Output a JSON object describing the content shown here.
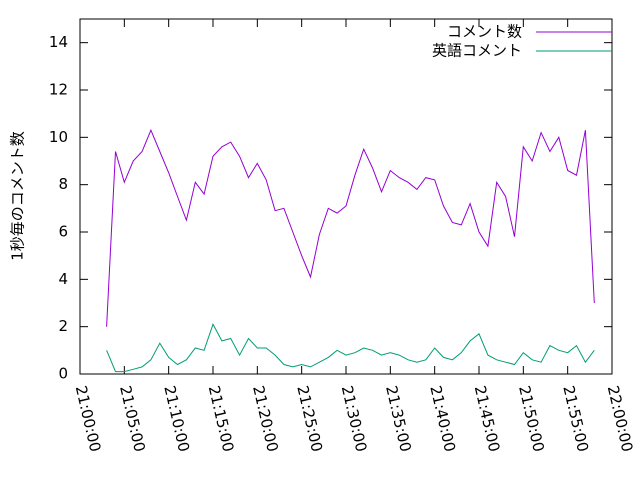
{
  "chart_data": {
    "type": "line",
    "ylabel": "1秒毎のコメント数",
    "x": [
      "21:03:00",
      "21:04:00",
      "21:05:00",
      "21:06:00",
      "21:07:00",
      "21:08:00",
      "21:09:00",
      "21:10:00",
      "21:11:00",
      "21:12:00",
      "21:13:00",
      "21:14:00",
      "21:15:00",
      "21:16:00",
      "21:17:00",
      "21:18:00",
      "21:19:00",
      "21:20:00",
      "21:21:00",
      "21:22:00",
      "21:23:00",
      "21:24:00",
      "21:25:00",
      "21:26:00",
      "21:27:00",
      "21:28:00",
      "21:29:00",
      "21:30:00",
      "21:31:00",
      "21:32:00",
      "21:33:00",
      "21:34:00",
      "21:35:00",
      "21:36:00",
      "21:37:00",
      "21:38:00",
      "21:39:00",
      "21:40:00",
      "21:41:00",
      "21:42:00",
      "21:43:00",
      "21:44:00",
      "21:45:00",
      "21:46:00",
      "21:47:00",
      "21:48:00",
      "21:49:00",
      "21:50:00",
      "21:51:00",
      "21:52:00",
      "21:53:00",
      "21:54:00",
      "21:55:00",
      "21:56:00",
      "21:57:00",
      "21:58:00"
    ],
    "series": [
      {
        "name": "コメント数",
        "color": "#9400d3",
        "values": [
          2.0,
          9.4,
          8.1,
          9.0,
          9.4,
          10.3,
          9.4,
          8.5,
          7.5,
          6.5,
          8.1,
          7.6,
          9.2,
          9.6,
          9.8,
          9.2,
          8.3,
          8.9,
          8.2,
          6.9,
          7.0,
          6.0,
          5.0,
          4.1,
          5.9,
          7.0,
          6.8,
          7.1,
          8.4,
          9.5,
          8.7,
          7.7,
          8.6,
          8.3,
          8.1,
          7.8,
          8.3,
          8.2,
          7.1,
          6.4,
          6.3,
          7.2,
          6.0,
          5.4,
          8.1,
          7.5,
          5.8,
          9.6,
          9.0,
          10.2,
          9.4,
          10.0,
          8.6,
          8.4,
          10.3,
          3.0
        ]
      },
      {
        "name": "英語コメント",
        "color": "#009e73",
        "values": [
          1.0,
          0.1,
          0.1,
          0.2,
          0.3,
          0.6,
          1.3,
          0.7,
          0.4,
          0.6,
          1.1,
          1.0,
          2.1,
          1.4,
          1.5,
          0.8,
          1.5,
          1.1,
          1.1,
          0.8,
          0.4,
          0.3,
          0.4,
          0.3,
          0.5,
          0.7,
          1.0,
          0.8,
          0.9,
          1.1,
          1.0,
          0.8,
          0.9,
          0.8,
          0.6,
          0.5,
          0.6,
          1.1,
          0.7,
          0.6,
          0.9,
          1.4,
          1.7,
          0.8,
          0.6,
          0.5,
          0.4,
          0.9,
          0.6,
          0.5,
          1.2,
          1.0,
          0.9,
          1.2,
          0.5,
          1.0
        ]
      }
    ],
    "xlim": [
      "21:00:00",
      "22:00:00"
    ],
    "xticks": [
      "21:00:00",
      "21:05:00",
      "21:10:00",
      "21:15:00",
      "21:20:00",
      "21:25:00",
      "21:30:00",
      "21:35:00",
      "21:40:00",
      "21:45:00",
      "21:50:00",
      "21:55:00",
      "22:00:00"
    ],
    "ylim": [
      0,
      15
    ],
    "yticks": [
      0,
      2,
      4,
      6,
      8,
      10,
      12,
      14
    ],
    "legend": "top-right"
  }
}
